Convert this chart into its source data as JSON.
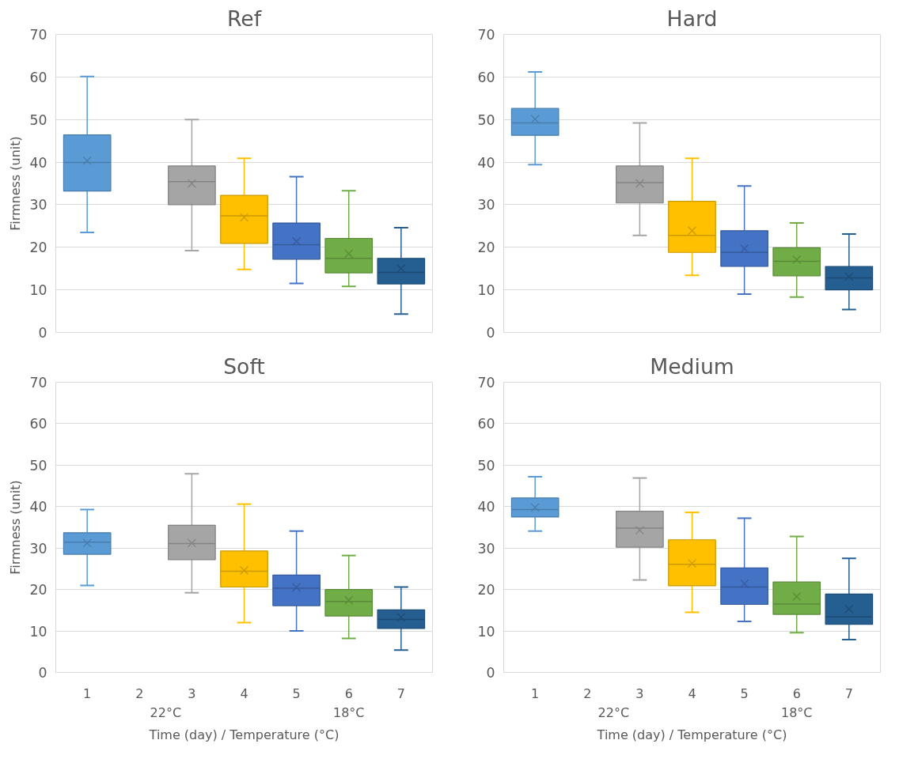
{
  "chart_data": [
    {
      "type": "box",
      "title": "Ref",
      "ylabel": "Firmness (unit)",
      "categories": [
        "1",
        "2",
        "3",
        "4",
        "5",
        "6",
        "7"
      ],
      "ylim": [
        0,
        70
      ],
      "yticks": [
        0,
        10,
        20,
        30,
        40,
        50,
        60,
        70
      ],
      "grid": "y",
      "marker": "cross",
      "tick_labels": "y",
      "colors": [
        "#5b9bd5",
        null,
        "#a5a5a5",
        "#ffc000",
        "#4472c4",
        "#70ad47",
        "#255e91"
      ],
      "boxes": [
        {
          "low": 23.5,
          "q1": 33.2,
          "median": 39.9,
          "q3": 46.4,
          "high": 60.1,
          "mean": 40.3
        },
        null,
        {
          "low": 19.2,
          "q1": 30,
          "median": 35.4,
          "q3": 39.1,
          "high": 50,
          "mean": 35.0
        },
        {
          "low": 14.8,
          "q1": 20.9,
          "median": 27.4,
          "q3": 32.2,
          "high": 40.9,
          "mean": 27.0
        },
        {
          "low": 11.5,
          "q1": 17.2,
          "median": 20.6,
          "q3": 25.7,
          "high": 36.6,
          "mean": 21.4
        },
        {
          "low": 10.8,
          "q1": 14.0,
          "median": 17.4,
          "q3": 22.1,
          "high": 33.3,
          "mean": 18.5
        },
        {
          "low": 4.3,
          "q1": 11.4,
          "median": 14.1,
          "q3": 17.4,
          "high": 24.6,
          "mean": 15.0
        }
      ]
    },
    {
      "type": "box",
      "title": "Hard",
      "categories": [
        "1",
        "2",
        "3",
        "4",
        "5",
        "6",
        "7"
      ],
      "ylim": [
        0,
        70
      ],
      "yticks": [
        0,
        10,
        20,
        30,
        40,
        50,
        60,
        70
      ],
      "grid": "y",
      "marker": "cross",
      "tick_labels": "y",
      "colors": [
        "#5b9bd5",
        null,
        "#a5a5a5",
        "#ffc000",
        "#4472c4",
        "#70ad47",
        "#255e91"
      ],
      "boxes": [
        {
          "low": 39.4,
          "q1": 46.3,
          "median": 49.2,
          "q3": 52.6,
          "high": 61.2,
          "mean": 50.1
        },
        null,
        {
          "low": 22.8,
          "q1": 30.4,
          "median": 35.2,
          "q3": 39.1,
          "high": 49.2,
          "mean": 35.0
        },
        {
          "low": 13.4,
          "q1": 18.8,
          "median": 22.8,
          "q3": 30.8,
          "high": 40.9,
          "mean": 23.9
        },
        {
          "low": 9.0,
          "q1": 15.5,
          "median": 18.8,
          "q3": 23.9,
          "high": 34.4,
          "mean": 19.7
        },
        {
          "low": 8.3,
          "q1": 13.3,
          "median": 16.7,
          "q3": 19.9,
          "high": 25.7,
          "mean": 17.1
        },
        {
          "low": 5.4,
          "q1": 10.0,
          "median": 12.8,
          "q3": 15.5,
          "high": 23.1,
          "mean": 13.1
        }
      ]
    },
    {
      "type": "box",
      "title": "Soft",
      "ylabel": "Firmness (unit)",
      "xlabel": "Time (day) / Temperature (°C)",
      "annotations": [
        "22°C",
        "18°C"
      ],
      "categories": [
        "1",
        "2",
        "3",
        "4",
        "5",
        "6",
        "7"
      ],
      "ylim": [
        0,
        70
      ],
      "yticks": [
        0,
        10,
        20,
        30,
        40,
        50,
        60,
        70
      ],
      "grid": "y",
      "marker": "cross",
      "colors": [
        "#5b9bd5",
        null,
        "#a5a5a5",
        "#ffc000",
        "#4472c4",
        "#70ad47",
        "#255e91"
      ],
      "boxes": [
        {
          "low": 21.0,
          "q1": 28.5,
          "median": 31.4,
          "q3": 33.7,
          "high": 39.3,
          "mean": 31.2
        },
        null,
        {
          "low": 19.2,
          "q1": 27.2,
          "median": 31.1,
          "q3": 35.5,
          "high": 47.9,
          "mean": 31.2
        },
        {
          "low": 12.0,
          "q1": 20.6,
          "median": 24.4,
          "q3": 29.3,
          "high": 40.6,
          "mean": 24.6
        },
        {
          "low": 10.0,
          "q1": 16.1,
          "median": 20.3,
          "q3": 23.5,
          "high": 34.1,
          "mean": 20.5
        },
        {
          "low": 8.2,
          "q1": 13.6,
          "median": 17.1,
          "q3": 20.0,
          "high": 28.2,
          "mean": 17.4
        },
        {
          "low": 5.4,
          "q1": 10.6,
          "median": 12.8,
          "q3": 15.1,
          "high": 20.6,
          "mean": 13.3
        }
      ]
    },
    {
      "type": "box",
      "title": "Medium",
      "xlabel": "Time (day) / Temperature (°C)",
      "annotations": [
        "22°C",
        "18°C"
      ],
      "categories": [
        "1",
        "2",
        "3",
        "4",
        "5",
        "6",
        "7"
      ],
      "ylim": [
        0,
        70
      ],
      "yticks": [
        0,
        10,
        20,
        30,
        40,
        50,
        60,
        70
      ],
      "grid": "y",
      "marker": "cross",
      "colors": [
        "#5b9bd5",
        null,
        "#a5a5a5",
        "#ffc000",
        "#4472c4",
        "#70ad47",
        "#255e91"
      ],
      "boxes": [
        {
          "low": 34.1,
          "q1": 37.5,
          "median": 39.3,
          "q3": 42.1,
          "high": 47.2,
          "mean": 39.8
        },
        null,
        {
          "low": 22.3,
          "q1": 30.2,
          "median": 34.8,
          "q3": 38.9,
          "high": 46.9,
          "mean": 34.3
        },
        {
          "low": 14.5,
          "q1": 20.9,
          "median": 26.1,
          "q3": 32.0,
          "high": 38.6,
          "mean": 26.3
        },
        {
          "low": 12.3,
          "q1": 16.4,
          "median": 20.6,
          "q3": 25.2,
          "high": 37.2,
          "mean": 21.4
        },
        {
          "low": 9.6,
          "q1": 14.0,
          "median": 16.5,
          "q3": 21.8,
          "high": 32.8,
          "mean": 18.3
        },
        {
          "low": 7.9,
          "q1": 11.6,
          "median": 13.4,
          "q3": 18.9,
          "high": 27.5,
          "mean": 15.3
        }
      ]
    }
  ]
}
